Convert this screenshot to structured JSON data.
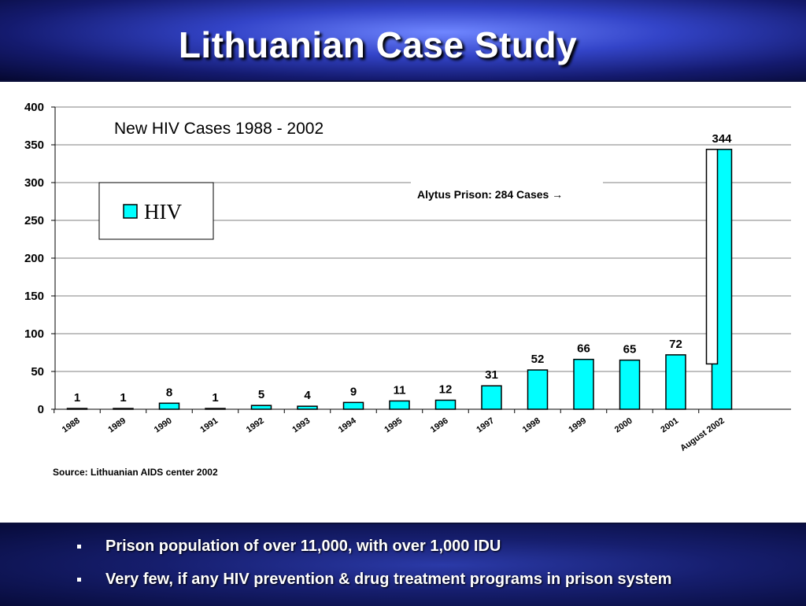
{
  "slide": {
    "title": "Lithuanian Case Study"
  },
  "chart_data": {
    "type": "bar",
    "title": "New HIV Cases 1988 - 2002",
    "categories": [
      "1988",
      "1989",
      "1990",
      "1991",
      "1992",
      "1993",
      "1994",
      "1995",
      "1996",
      "1997",
      "1998",
      "1999",
      "2000",
      "2001",
      "August 2002"
    ],
    "series": [
      {
        "name": "HIV",
        "values": [
          1,
          1,
          8,
          1,
          5,
          4,
          9,
          11,
          12,
          31,
          52,
          66,
          65,
          72,
          344
        ]
      }
    ],
    "prison_subset": {
      "category": "August 2002",
      "value": 284
    },
    "ylim": [
      0,
      400
    ],
    "yticks": [
      0,
      50,
      100,
      150,
      200,
      250,
      300,
      350,
      400
    ],
    "grid": true,
    "legend": "top-left",
    "annotation": "Alytus Prison: 284 Cases →",
    "source": "Source: Lithuanian AIDS center 2002",
    "colors": {
      "bar": "#00ffff",
      "subset": "#ffffff",
      "grid": "#808080"
    }
  },
  "bullets": [
    "Prison population of over 11,000,  with over 1,000 IDU",
    "Very few, if any HIV prevention & drug treatment programs in prison system"
  ]
}
